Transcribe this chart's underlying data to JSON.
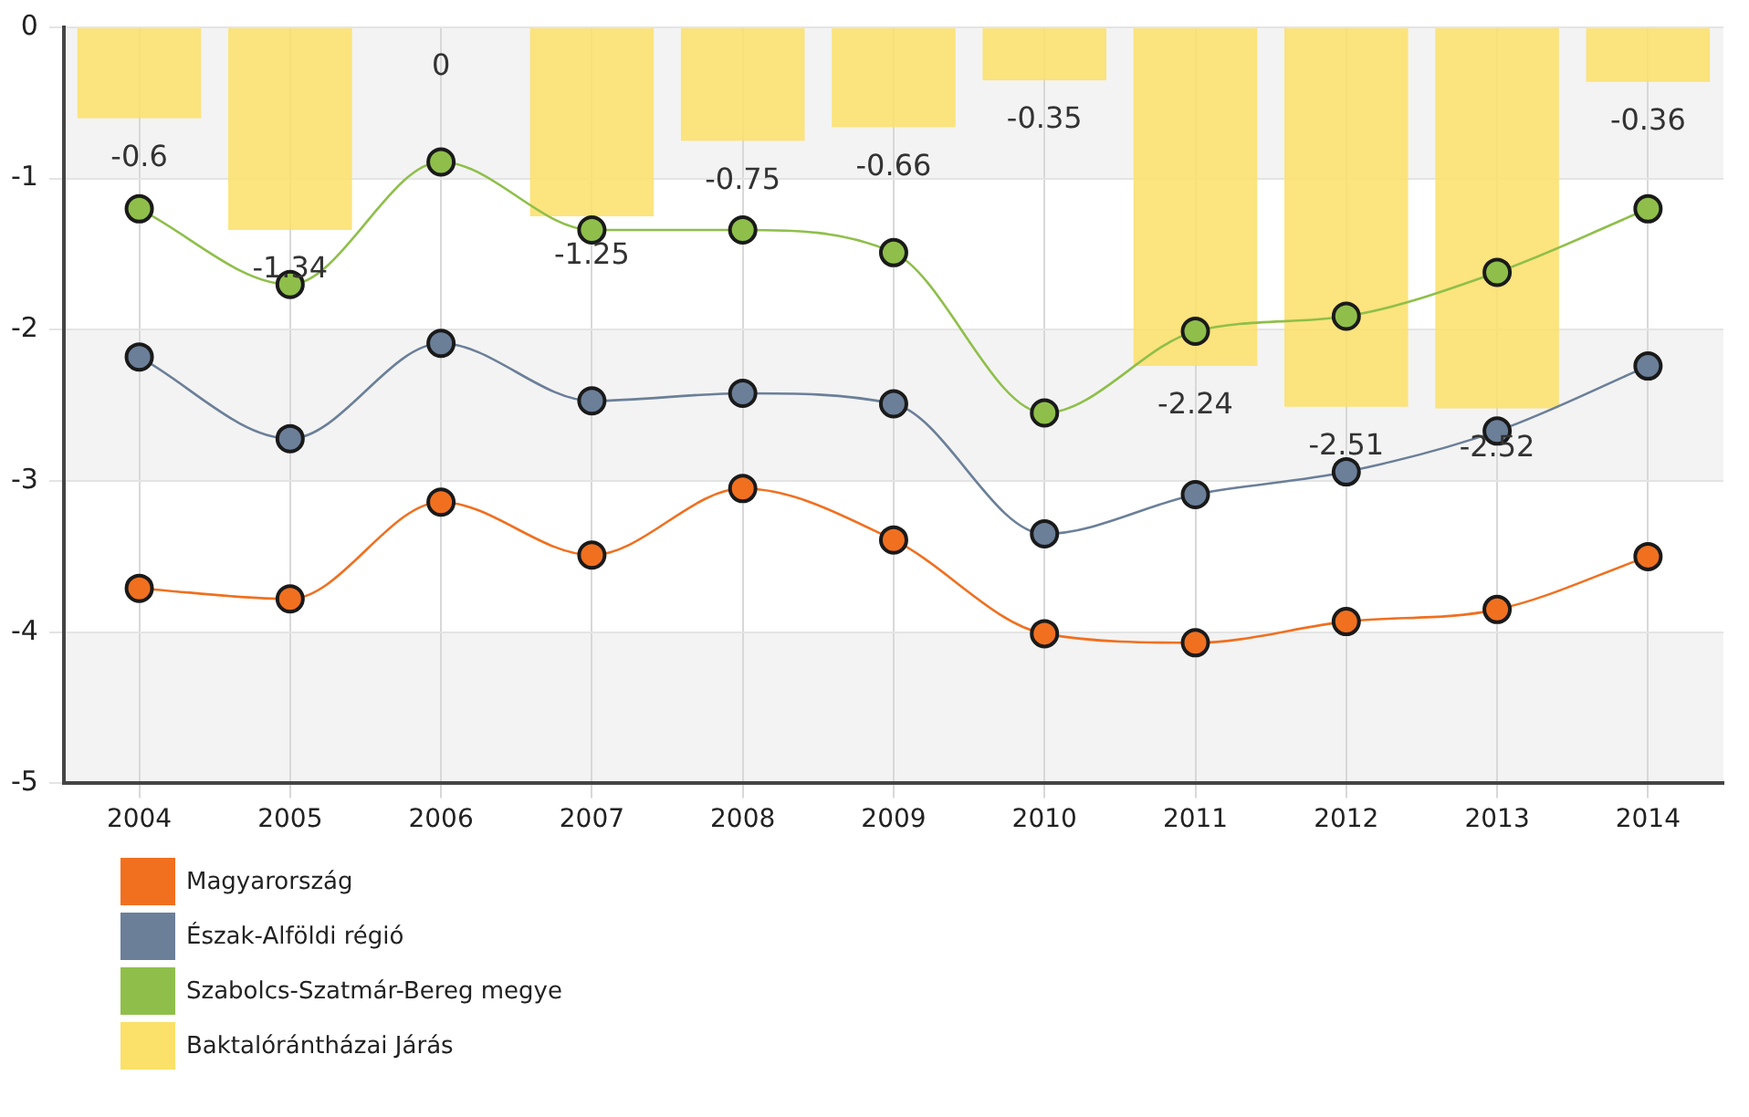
{
  "chart_data": {
    "type": "line",
    "categories": [
      "2004",
      "2005",
      "2006",
      "2007",
      "2008",
      "2009",
      "2010",
      "2011",
      "2012",
      "2013",
      "2014"
    ],
    "series": [
      {
        "name": "Magyarország",
        "color": "#f07020",
        "values": [
          -3.71,
          -3.78,
          -3.14,
          -3.49,
          -3.05,
          -3.39,
          -4.01,
          -4.07,
          -3.93,
          -3.85,
          -3.5
        ]
      },
      {
        "name": "Észak-Alföldi régió",
        "color": "#6b7f99",
        "values": [
          -2.18,
          -2.72,
          -2.09,
          -2.47,
          -2.42,
          -2.49,
          -3.35,
          -3.09,
          -2.94,
          -2.67,
          -2.24
        ]
      },
      {
        "name": "Szabolcs-Szatmár-Bereg megye",
        "color": "#8fbf4a",
        "values": [
          -1.2,
          -1.7,
          -0.89,
          -1.34,
          -1.34,
          -1.49,
          -2.55,
          -2.01,
          -1.91,
          -1.62,
          -1.2
        ]
      },
      {
        "name": "Baktalórántházai Járás",
        "type": "bar",
        "color": "#fbe06a",
        "values": [
          -0.6,
          -1.34,
          0,
          -1.25,
          -0.75,
          -0.66,
          -0.35,
          -2.24,
          -2.51,
          -2.52,
          -0.36
        ],
        "value_labels": [
          "-0.6",
          "-1.34",
          "0",
          "-1.25",
          "-0.75",
          "-0.66",
          "-0.35",
          "-2.24",
          "-2.51",
          "-2.52",
          "-0.36"
        ]
      }
    ],
    "ylim": [
      -5,
      0
    ],
    "yticks": [
      0,
      -1,
      -2,
      -3,
      -4,
      -5
    ],
    "grid": true,
    "legend": "bottom",
    "marker": "circle",
    "line_style": "solid"
  }
}
